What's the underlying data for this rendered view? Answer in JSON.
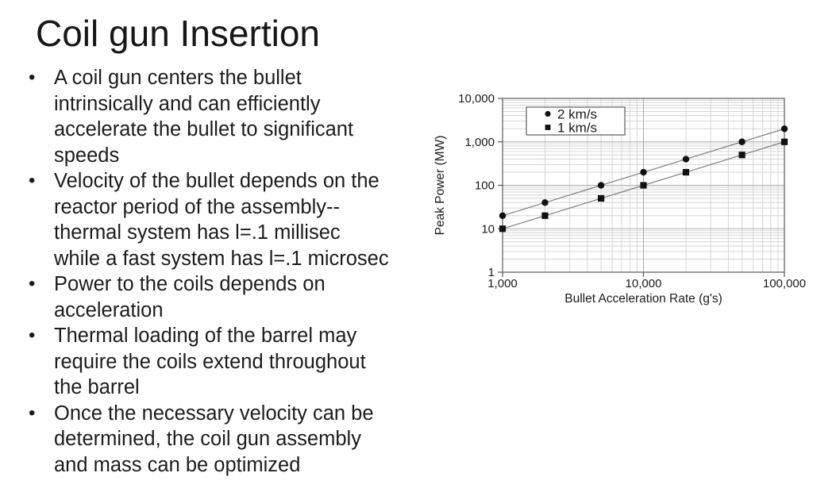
{
  "slide": {
    "title": "Coil gun Insertion",
    "bullets": [
      "A coil gun centers the bullet intrinsically and can efficiently accelerate the bullet to significant speeds",
      "Velocity of the bullet depends on the reactor period of the assembly-- thermal system has l=.1 millisec while a fast system has l=.1 microsec",
      "Power to the coils depends on acceleration",
      "Thermal loading of the barrel may require the coils extend throughout the barrel",
      "Once the necessary velocity can be determined, the coil gun assembly and mass can be optimized"
    ]
  },
  "chart_data": {
    "type": "line",
    "title": "",
    "xlabel": "Bullet Acceleration Rate (g's)",
    "ylabel": "Peak Power (MW)",
    "x_scale": "log",
    "y_scale": "log",
    "xlim": [
      1000,
      100000
    ],
    "ylim": [
      1,
      10000
    ],
    "x_tick_labels": [
      "1,000",
      "10,000",
      "100,000"
    ],
    "y_tick_labels": [
      "1",
      "10",
      "100",
      "1,000",
      "10,000"
    ],
    "grid": "log major + minor, both axes",
    "legend_position": "top-left inside plot",
    "x": [
      1000,
      2000,
      5000,
      10000,
      20000,
      50000,
      100000
    ],
    "series": [
      {
        "name": "2 km/s",
        "marker": "circle",
        "values": [
          20,
          40,
          100,
          200,
          400,
          1000,
          2000
        ]
      },
      {
        "name": "1 km/s",
        "marker": "square",
        "values": [
          10,
          20,
          50,
          100,
          200,
          500,
          1000
        ]
      }
    ],
    "colors": {
      "marker": "#111111",
      "line": "#7f7f7f",
      "grid_minor": "#d6d6d6",
      "grid_major": "#a8a8a8",
      "axis": "#5a5a5a",
      "text": "#1a1a1a"
    }
  }
}
